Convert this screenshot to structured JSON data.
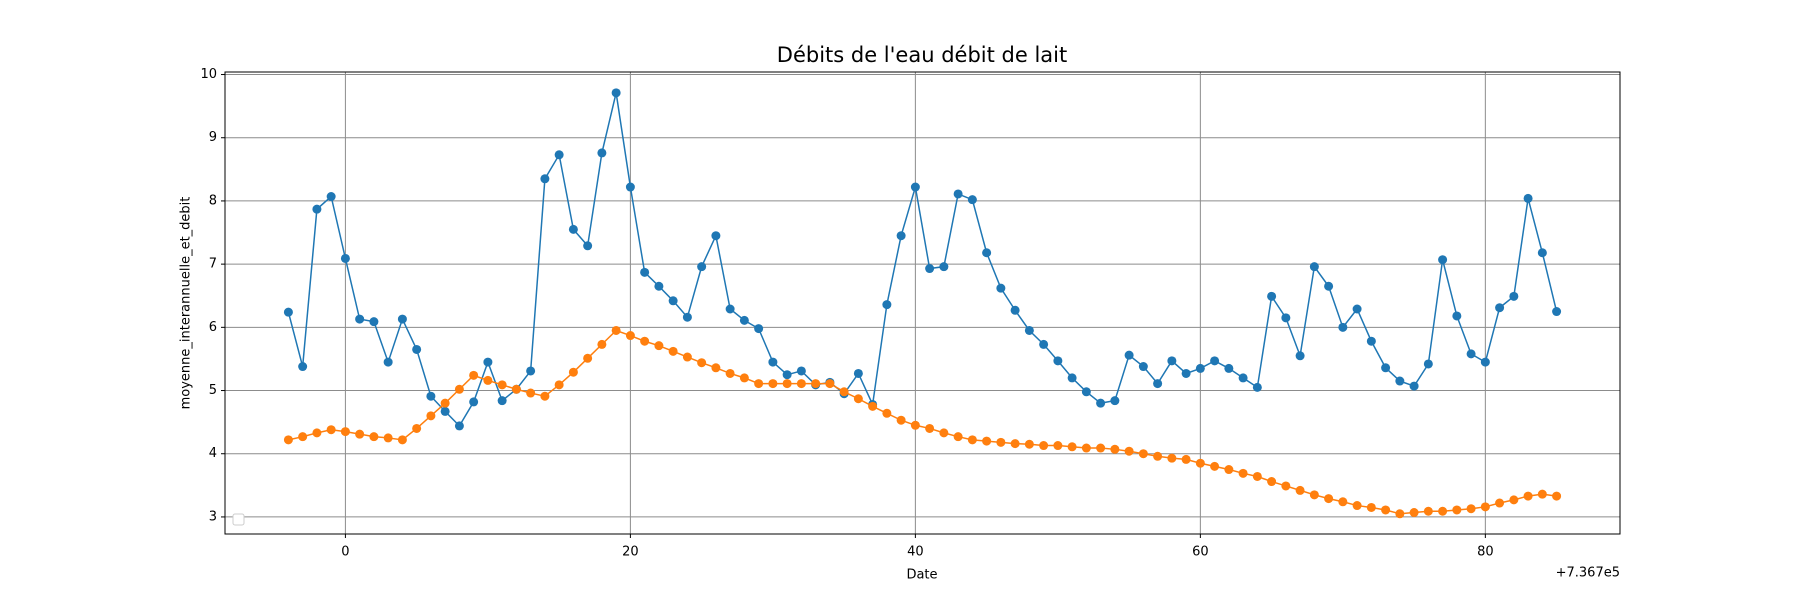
{
  "chart_data": {
    "type": "line",
    "title": "Débits de l'eau débit de lait",
    "x_label": "Date",
    "y_label": "moyenne_interannuelle_et_debit",
    "x_offset_label": "+7.367e5",
    "x": [
      -4,
      -3,
      -2,
      -1,
      0,
      1,
      2,
      3,
      4,
      5,
      6,
      7,
      8,
      9,
      10,
      11,
      12,
      13,
      14,
      15,
      16,
      17,
      18,
      19,
      20,
      21,
      22,
      23,
      24,
      25,
      26,
      27,
      28,
      29,
      30,
      31,
      32,
      33,
      34,
      35,
      36,
      37,
      38,
      39,
      40,
      41,
      42,
      43,
      44,
      45,
      46,
      47,
      48,
      49,
      50,
      51,
      52,
      53,
      54,
      55,
      56,
      57,
      58,
      59,
      60,
      61,
      62,
      63,
      64,
      65,
      66,
      67,
      68,
      69,
      70,
      71,
      72,
      73,
      74,
      75,
      76,
      77,
      78,
      79,
      80,
      81,
      82,
      83,
      84,
      85
    ],
    "series": [
      {
        "color": "#1f77b4",
        "values": [
          6.24,
          5.38,
          7.87,
          8.07,
          7.09,
          6.13,
          6.09,
          5.45,
          6.13,
          5.65,
          4.91,
          4.67,
          4.44,
          4.82,
          5.45,
          4.84,
          5.02,
          5.31,
          8.35,
          8.73,
          7.55,
          7.29,
          8.76,
          9.71,
          8.22,
          6.87,
          6.65,
          6.42,
          6.16,
          6.96,
          7.45,
          6.29,
          6.11,
          5.98,
          5.45,
          5.25,
          5.31,
          5.09,
          5.13,
          4.95,
          5.27,
          4.78,
          6.36,
          7.45,
          8.22,
          6.93,
          6.96,
          8.11,
          8.02,
          7.18,
          6.62,
          6.27,
          5.95,
          5.73,
          5.47,
          5.2,
          4.98,
          4.8,
          4.84,
          5.56,
          5.38,
          5.11,
          5.47,
          5.27,
          5.35,
          5.47,
          5.35,
          5.2,
          5.05,
          6.49,
          6.15,
          5.55,
          6.96,
          6.65,
          6.0,
          6.29,
          5.78,
          5.36,
          5.15,
          5.07,
          5.42,
          7.07,
          6.18,
          5.58,
          5.45,
          6.31,
          6.49,
          8.04,
          7.18,
          6.25
        ]
      },
      {
        "color": "#ff7f0e",
        "values": [
          4.22,
          4.27,
          4.33,
          4.38,
          4.35,
          4.31,
          4.27,
          4.25,
          4.22,
          4.4,
          4.6,
          4.8,
          5.02,
          5.24,
          5.16,
          5.09,
          5.02,
          4.96,
          4.91,
          5.09,
          5.29,
          5.51,
          5.73,
          5.95,
          5.87,
          5.78,
          5.71,
          5.62,
          5.53,
          5.44,
          5.36,
          5.27,
          5.2,
          5.11,
          5.11,
          5.11,
          5.11,
          5.11,
          5.11,
          4.98,
          4.87,
          4.75,
          4.64,
          4.53,
          4.45,
          4.4,
          4.33,
          4.27,
          4.22,
          4.2,
          4.18,
          4.16,
          4.15,
          4.13,
          4.13,
          4.11,
          4.09,
          4.09,
          4.07,
          4.04,
          4.0,
          3.96,
          3.93,
          3.91,
          3.85,
          3.8,
          3.75,
          3.69,
          3.64,
          3.56,
          3.49,
          3.42,
          3.35,
          3.29,
          3.24,
          3.18,
          3.15,
          3.11,
          3.05,
          3.07,
          3.09,
          3.09,
          3.11,
          3.13,
          3.16,
          3.22,
          3.27,
          3.33,
          3.36,
          3.33
        ]
      }
    ],
    "xlim": [
      -8.45,
      89.45
    ],
    "xticks": [
      0,
      20,
      40,
      60,
      80
    ],
    "ylim": [
      2.73,
      10.04
    ],
    "yticks": [
      3,
      4,
      5,
      6,
      7,
      8,
      9,
      10
    ],
    "grid": true,
    "legend": "lower left"
  }
}
